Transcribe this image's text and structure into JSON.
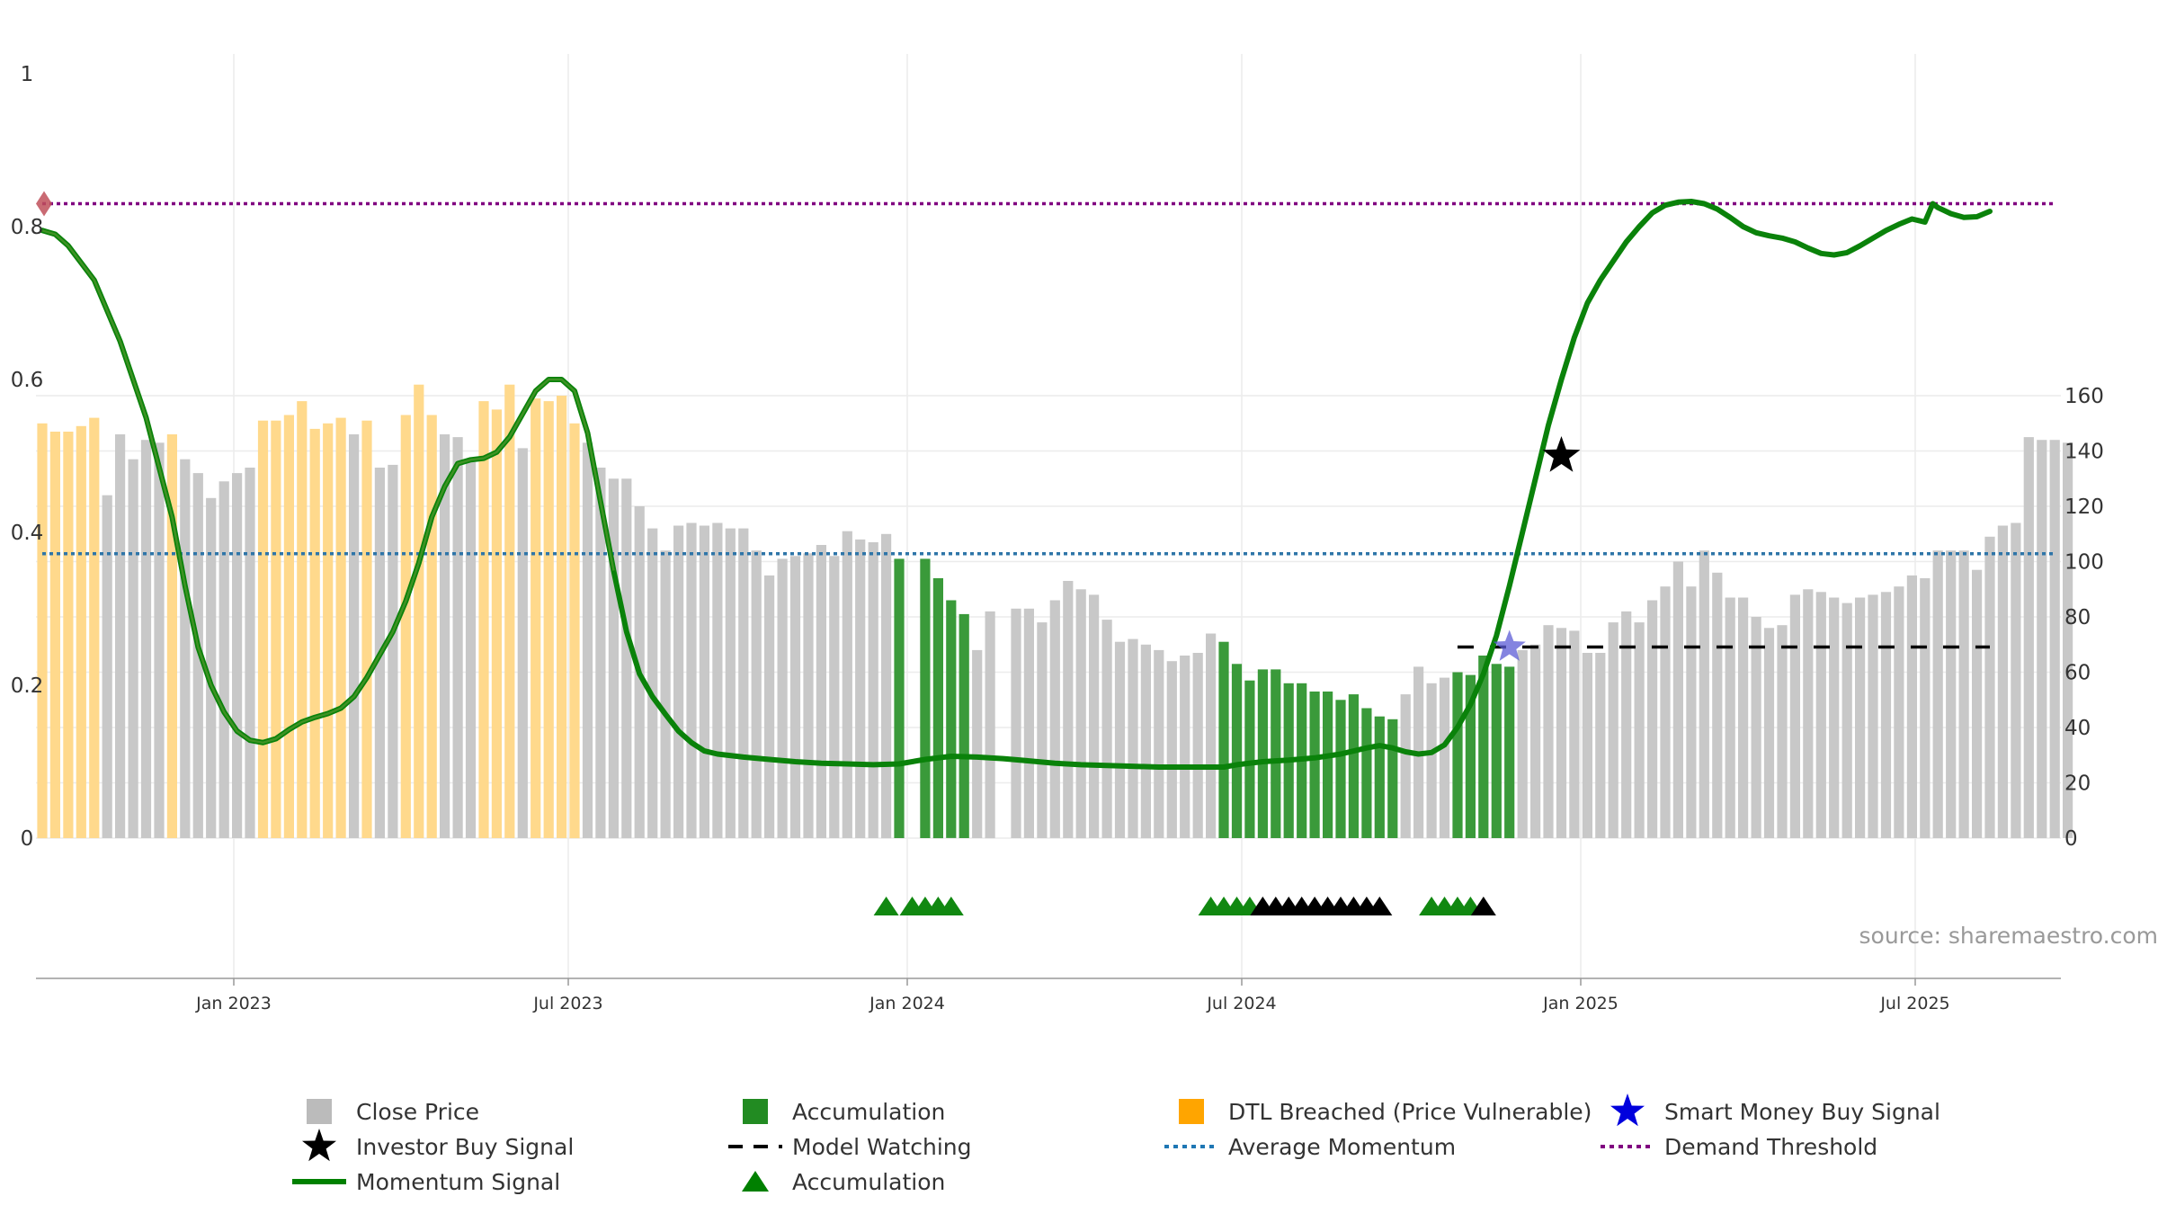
{
  "chart_data": {
    "type": "bar",
    "source": "source: sharemaestro.com",
    "left_axis": {
      "ylim": [
        0,
        1
      ],
      "ticks": [
        "0",
        "0.2",
        "0.4",
        "0.6",
        "0.8",
        "1"
      ]
    },
    "right_axis": {
      "ylim": [
        0,
        178
      ],
      "ticks": [
        "0",
        "20",
        "40",
        "60",
        "80",
        "100",
        "120",
        "140",
        "160"
      ]
    },
    "x_ticks": [
      "Jan 2023",
      "Jul 2023",
      "Jan 2024",
      "Jul 2024",
      "Jan 2025",
      "Jul 2025"
    ],
    "grid": true,
    "legend_position": "bottom",
    "close_price": [
      {
        "v": 150,
        "c": "dtl"
      },
      {
        "v": 147,
        "c": "dtl"
      },
      {
        "v": 147,
        "c": "dtl"
      },
      {
        "v": 149,
        "c": "dtl"
      },
      {
        "v": 152,
        "c": "dtl"
      },
      {
        "v": 124,
        "c": "price"
      },
      {
        "v": 146,
        "c": "price"
      },
      {
        "v": 137,
        "c": "price"
      },
      {
        "v": 144,
        "c": "price"
      },
      {
        "v": 143,
        "c": "price"
      },
      {
        "v": 146,
        "c": "dtl"
      },
      {
        "v": 137,
        "c": "price"
      },
      {
        "v": 132,
        "c": "price"
      },
      {
        "v": 123,
        "c": "price"
      },
      {
        "v": 129,
        "c": "price"
      },
      {
        "v": 132,
        "c": "price"
      },
      {
        "v": 134,
        "c": "price"
      },
      {
        "v": 151,
        "c": "dtl"
      },
      {
        "v": 151,
        "c": "dtl"
      },
      {
        "v": 153,
        "c": "dtl"
      },
      {
        "v": 158,
        "c": "dtl"
      },
      {
        "v": 148,
        "c": "dtl"
      },
      {
        "v": 150,
        "c": "dtl"
      },
      {
        "v": 152,
        "c": "dtl"
      },
      {
        "v": 146,
        "c": "price"
      },
      {
        "v": 151,
        "c": "dtl"
      },
      {
        "v": 134,
        "c": "price"
      },
      {
        "v": 135,
        "c": "price"
      },
      {
        "v": 153,
        "c": "dtl"
      },
      {
        "v": 164,
        "c": "dtl"
      },
      {
        "v": 153,
        "c": "dtl"
      },
      {
        "v": 146,
        "c": "price"
      },
      {
        "v": 145,
        "c": "price"
      },
      {
        "v": 136,
        "c": "price"
      },
      {
        "v": 158,
        "c": "dtl"
      },
      {
        "v": 155,
        "c": "dtl"
      },
      {
        "v": 164,
        "c": "dtl"
      },
      {
        "v": 141,
        "c": "price"
      },
      {
        "v": 159,
        "c": "dtl"
      },
      {
        "v": 158,
        "c": "dtl"
      },
      {
        "v": 160,
        "c": "dtl"
      },
      {
        "v": 150,
        "c": "dtl"
      },
      {
        "v": 143,
        "c": "price"
      },
      {
        "v": 134,
        "c": "price"
      },
      {
        "v": 130,
        "c": "price"
      },
      {
        "v": 130,
        "c": "price"
      },
      {
        "v": 120,
        "c": "price"
      },
      {
        "v": 112,
        "c": "price"
      },
      {
        "v": 104,
        "c": "price"
      },
      {
        "v": 113,
        "c": "price"
      },
      {
        "v": 114,
        "c": "price"
      },
      {
        "v": 113,
        "c": "price"
      },
      {
        "v": 114,
        "c": "price"
      },
      {
        "v": 112,
        "c": "price"
      },
      {
        "v": 112,
        "c": "price"
      },
      {
        "v": 104,
        "c": "price"
      },
      {
        "v": 95,
        "c": "price"
      },
      {
        "v": 101,
        "c": "price"
      },
      {
        "v": 102,
        "c": "price"
      },
      {
        "v": 103,
        "c": "price"
      },
      {
        "v": 106,
        "c": "price"
      },
      {
        "v": 102,
        "c": "price"
      },
      {
        "v": 111,
        "c": "price"
      },
      {
        "v": 108,
        "c": "price"
      },
      {
        "v": 107,
        "c": "price"
      },
      {
        "v": 110,
        "c": "price"
      },
      {
        "v": 101,
        "c": "acc"
      },
      {
        "v": 0,
        "c": "gap"
      },
      {
        "v": 101,
        "c": "acc"
      },
      {
        "v": 94,
        "c": "acc"
      },
      {
        "v": 86,
        "c": "acc"
      },
      {
        "v": 81,
        "c": "acc"
      },
      {
        "v": 68,
        "c": "price"
      },
      {
        "v": 82,
        "c": "price"
      },
      {
        "v": 0,
        "c": "gap"
      },
      {
        "v": 83,
        "c": "price"
      },
      {
        "v": 83,
        "c": "price"
      },
      {
        "v": 78,
        "c": "price"
      },
      {
        "v": 86,
        "c": "price"
      },
      {
        "v": 93,
        "c": "price"
      },
      {
        "v": 90,
        "c": "price"
      },
      {
        "v": 88,
        "c": "price"
      },
      {
        "v": 79,
        "c": "price"
      },
      {
        "v": 71,
        "c": "price"
      },
      {
        "v": 72,
        "c": "price"
      },
      {
        "v": 70,
        "c": "price"
      },
      {
        "v": 68,
        "c": "price"
      },
      {
        "v": 64,
        "c": "price"
      },
      {
        "v": 66,
        "c": "price"
      },
      {
        "v": 67,
        "c": "price"
      },
      {
        "v": 74,
        "c": "price"
      },
      {
        "v": 71,
        "c": "acc"
      },
      {
        "v": 63,
        "c": "acc"
      },
      {
        "v": 57,
        "c": "acc"
      },
      {
        "v": 61,
        "c": "acc"
      },
      {
        "v": 61,
        "c": "acc"
      },
      {
        "v": 56,
        "c": "acc"
      },
      {
        "v": 56,
        "c": "acc"
      },
      {
        "v": 53,
        "c": "acc"
      },
      {
        "v": 53,
        "c": "acc"
      },
      {
        "v": 50,
        "c": "acc"
      },
      {
        "v": 52,
        "c": "acc"
      },
      {
        "v": 47,
        "c": "acc"
      },
      {
        "v": 44,
        "c": "acc"
      },
      {
        "v": 43,
        "c": "acc"
      },
      {
        "v": 52,
        "c": "price"
      },
      {
        "v": 62,
        "c": "price"
      },
      {
        "v": 56,
        "c": "price"
      },
      {
        "v": 58,
        "c": "price"
      },
      {
        "v": 60,
        "c": "acc"
      },
      {
        "v": 59,
        "c": "acc"
      },
      {
        "v": 66,
        "c": "acc"
      },
      {
        "v": 63,
        "c": "acc"
      },
      {
        "v": 62,
        "c": "acc"
      },
      {
        "v": 68,
        "c": "price"
      },
      {
        "v": 70,
        "c": "price"
      },
      {
        "v": 77,
        "c": "price"
      },
      {
        "v": 76,
        "c": "price"
      },
      {
        "v": 75,
        "c": "price"
      },
      {
        "v": 67,
        "c": "price"
      },
      {
        "v": 67,
        "c": "price"
      },
      {
        "v": 78,
        "c": "price"
      },
      {
        "v": 82,
        "c": "price"
      },
      {
        "v": 78,
        "c": "price"
      },
      {
        "v": 86,
        "c": "price"
      },
      {
        "v": 91,
        "c": "price"
      },
      {
        "v": 100,
        "c": "price"
      },
      {
        "v": 91,
        "c": "price"
      },
      {
        "v": 104,
        "c": "price"
      },
      {
        "v": 96,
        "c": "price"
      },
      {
        "v": 87,
        "c": "price"
      },
      {
        "v": 87,
        "c": "price"
      },
      {
        "v": 80,
        "c": "price"
      },
      {
        "v": 76,
        "c": "price"
      },
      {
        "v": 77,
        "c": "price"
      },
      {
        "v": 88,
        "c": "price"
      },
      {
        "v": 90,
        "c": "price"
      },
      {
        "v": 89,
        "c": "price"
      },
      {
        "v": 87,
        "c": "price"
      },
      {
        "v": 85,
        "c": "price"
      },
      {
        "v": 87,
        "c": "price"
      },
      {
        "v": 88,
        "c": "price"
      },
      {
        "v": 89,
        "c": "price"
      },
      {
        "v": 91,
        "c": "price"
      },
      {
        "v": 95,
        "c": "price"
      },
      {
        "v": 94,
        "c": "price"
      },
      {
        "v": 104,
        "c": "price"
      },
      {
        "v": 104,
        "c": "price"
      },
      {
        "v": 104,
        "c": "price"
      },
      {
        "v": 97,
        "c": "price"
      },
      {
        "v": 109,
        "c": "price"
      },
      {
        "v": 113,
        "c": "price"
      },
      {
        "v": 114,
        "c": "price"
      },
      {
        "v": 145,
        "c": "price"
      },
      {
        "v": 144,
        "c": "price"
      },
      {
        "v": 144,
        "c": "price"
      },
      {
        "v": 143,
        "c": "price"
      }
    ],
    "momentum_signal": [
      [
        0,
        0.795
      ],
      [
        1,
        0.79
      ],
      [
        2,
        0.775
      ],
      [
        4,
        0.73
      ],
      [
        6,
        0.65
      ],
      [
        8,
        0.55
      ],
      [
        10,
        0.42
      ],
      [
        11,
        0.33
      ],
      [
        12,
        0.25
      ],
      [
        13,
        0.2
      ],
      [
        14,
        0.165
      ],
      [
        15,
        0.14
      ],
      [
        16,
        0.128
      ],
      [
        17,
        0.125
      ],
      [
        18,
        0.13
      ],
      [
        19,
        0.142
      ],
      [
        20,
        0.152
      ],
      [
        21,
        0.158
      ],
      [
        22,
        0.163
      ],
      [
        23,
        0.17
      ],
      [
        24,
        0.185
      ],
      [
        25,
        0.21
      ],
      [
        26,
        0.24
      ],
      [
        27,
        0.27
      ],
      [
        28,
        0.31
      ],
      [
        29,
        0.36
      ],
      [
        30,
        0.42
      ],
      [
        31,
        0.46
      ],
      [
        32,
        0.49
      ],
      [
        33,
        0.495
      ],
      [
        34,
        0.497
      ],
      [
        35,
        0.505
      ],
      [
        36,
        0.525
      ],
      [
        37,
        0.555
      ],
      [
        38,
        0.585
      ],
      [
        39,
        0.6
      ],
      [
        40,
        0.6
      ],
      [
        41,
        0.585
      ],
      [
        42,
        0.53
      ],
      [
        43,
        0.44
      ],
      [
        44,
        0.35
      ],
      [
        45,
        0.27
      ],
      [
        46,
        0.215
      ],
      [
        47,
        0.185
      ],
      [
        48,
        0.162
      ],
      [
        49,
        0.14
      ],
      [
        50,
        0.125
      ],
      [
        51,
        0.114
      ],
      [
        52,
        0.11
      ],
      [
        54,
        0.106
      ],
      [
        56,
        0.103
      ],
      [
        58,
        0.1
      ],
      [
        60,
        0.098
      ],
      [
        62,
        0.097
      ],
      [
        64,
        0.096
      ],
      [
        66,
        0.097
      ],
      [
        68,
        0.103
      ],
      [
        70,
        0.107
      ],
      [
        72,
        0.106
      ],
      [
        74,
        0.104
      ],
      [
        76,
        0.101
      ],
      [
        78,
        0.098
      ],
      [
        80,
        0.096
      ],
      [
        82,
        0.095
      ],
      [
        84,
        0.094
      ],
      [
        86,
        0.093
      ],
      [
        88,
        0.093
      ],
      [
        90,
        0.093
      ],
      [
        91,
        0.093
      ],
      [
        92,
        0.096
      ],
      [
        94,
        0.1
      ],
      [
        96,
        0.102
      ],
      [
        98,
        0.105
      ],
      [
        100,
        0.11
      ],
      [
        102,
        0.118
      ],
      [
        103,
        0.121
      ],
      [
        104,
        0.118
      ],
      [
        105,
        0.113
      ],
      [
        106,
        0.11
      ],
      [
        107,
        0.112
      ],
      [
        108,
        0.122
      ],
      [
        109,
        0.145
      ],
      [
        110,
        0.175
      ],
      [
        111,
        0.215
      ],
      [
        112,
        0.265
      ],
      [
        113,
        0.33
      ],
      [
        114,
        0.4
      ],
      [
        115,
        0.47
      ],
      [
        116,
        0.54
      ],
      [
        117,
        0.6
      ],
      [
        118,
        0.655
      ],
      [
        119,
        0.7
      ],
      [
        120,
        0.73
      ],
      [
        121,
        0.755
      ],
      [
        122,
        0.78
      ],
      [
        123,
        0.8
      ],
      [
        124,
        0.818
      ],
      [
        125,
        0.828
      ],
      [
        126,
        0.832
      ],
      [
        127,
        0.833
      ],
      [
        128,
        0.83
      ],
      [
        129,
        0.823
      ],
      [
        130,
        0.812
      ],
      [
        131,
        0.8
      ],
      [
        132,
        0.792
      ],
      [
        133,
        0.788
      ],
      [
        134,
        0.785
      ],
      [
        135,
        0.78
      ],
      [
        136,
        0.772
      ],
      [
        137,
        0.765
      ],
      [
        138,
        0.763
      ],
      [
        139,
        0.766
      ],
      [
        140,
        0.775
      ],
      [
        141,
        0.785
      ],
      [
        142,
        0.795
      ],
      [
        143,
        0.803
      ],
      [
        144,
        0.81
      ],
      [
        145,
        0.806
      ],
      [
        145.6,
        0.83
      ],
      [
        146,
        0.825
      ],
      [
        147,
        0.817
      ],
      [
        148,
        0.812
      ],
      [
        149,
        0.813
      ],
      [
        150,
        0.82
      ]
    ],
    "demand_threshold": 0.83,
    "average_momentum": 0.372,
    "model_watching": {
      "level": 0.25,
      "start": 109,
      "end": 150
    },
    "investor_buy_signal": {
      "index": 117,
      "value": 0.5
    },
    "smart_money_buy_signal": {
      "index": 113,
      "value": 0.25
    },
    "accumulation_markers": [
      {
        "i": 65,
        "c": "green"
      },
      {
        "i": 67,
        "c": "green"
      },
      {
        "i": 68,
        "c": "green"
      },
      {
        "i": 69,
        "c": "green"
      },
      {
        "i": 70,
        "c": "green"
      },
      {
        "i": 90,
        "c": "green"
      },
      {
        "i": 91,
        "c": "green"
      },
      {
        "i": 92,
        "c": "green"
      },
      {
        "i": 93,
        "c": "green"
      },
      {
        "i": 94,
        "c": "black"
      },
      {
        "i": 95,
        "c": "black"
      },
      {
        "i": 96,
        "c": "black"
      },
      {
        "i": 97,
        "c": "black"
      },
      {
        "i": 98,
        "c": "black"
      },
      {
        "i": 99,
        "c": "black"
      },
      {
        "i": 100,
        "c": "black"
      },
      {
        "i": 101,
        "c": "black"
      },
      {
        "i": 102,
        "c": "black"
      },
      {
        "i": 103,
        "c": "black"
      },
      {
        "i": 107,
        "c": "green"
      },
      {
        "i": 108,
        "c": "green"
      },
      {
        "i": 109,
        "c": "green"
      },
      {
        "i": 110,
        "c": "green"
      },
      {
        "i": 111,
        "c": "black"
      }
    ],
    "legend": [
      {
        "label": "Close Price",
        "type": "square",
        "color": "#bbbbbb"
      },
      {
        "label": "Accumulation",
        "type": "square",
        "color": "#228b22"
      },
      {
        "label": "DTL Breached (Price Vulnerable)",
        "type": "square",
        "color": "#ffa500"
      },
      {
        "label": "Smart Money Buy Signal",
        "type": "star",
        "color": "#0000dd"
      },
      {
        "label": "Investor Buy Signal",
        "type": "star",
        "color": "#000000"
      },
      {
        "label": "Model Watching",
        "type": "dash",
        "color": "#000000"
      },
      {
        "label": "Average Momentum",
        "type": "dot",
        "color": "#1f77b4"
      },
      {
        "label": "Demand Threshold",
        "type": "dot",
        "color": "#800080"
      },
      {
        "label": "Momentum Signal",
        "type": "line",
        "color": "#008000"
      },
      {
        "label": "Accumulation",
        "type": "triangle",
        "color": "#008000"
      }
    ],
    "colors": {
      "price": "#c8c8c8",
      "acc": "#3a9a3a",
      "dtl": "#ffd98c",
      "momentum": "#0a820a",
      "momentum_blend": "#6aa03a",
      "demand": "#800080",
      "average": "#2e75a8",
      "marker_green": "#118811",
      "marker_black": "#000000",
      "smart_money": "#5b5bd6"
    }
  }
}
